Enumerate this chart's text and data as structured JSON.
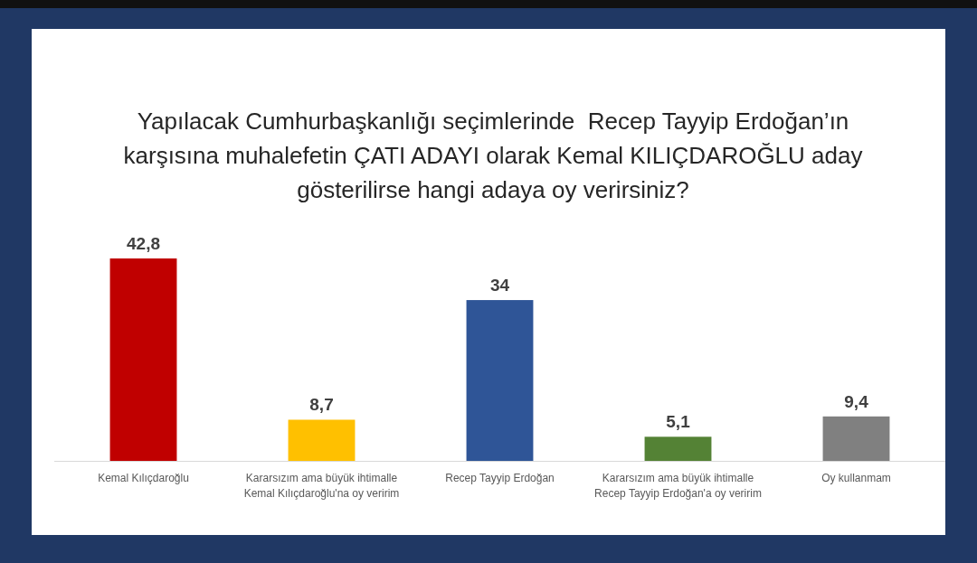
{
  "chart_data": {
    "type": "bar",
    "title": "Yapılacak Cumhurbaşkanlığı seçimlerinde  Recep Tayyip Erdoğan’ın karşısına muhalefetin ÇATI ADAYI olarak Kemal KILIÇDAROĞLU aday gösterilirse hangi adaya oy verirsiniz?",
    "categories": [
      "Kemal Kılıçdaroğlu",
      "Kararsızım ama büyük ihtimalle Kemal Kılıçdaroğlu'na oy veririm",
      "Recep Tayyip Erdoğan",
      "Kararsızım ama büyük ihtimalle Recep Tayyip Erdoğan'a oy veririm",
      "Oy kullanmam"
    ],
    "values": [
      42.8,
      8.7,
      34,
      5.1,
      9.4
    ],
    "value_labels": [
      "42,8",
      "8,7",
      "34",
      "5,1",
      "9,4"
    ],
    "colors": [
      "#c00000",
      "#ffc000",
      "#2f5597",
      "#548235",
      "#808080"
    ]
  }
}
